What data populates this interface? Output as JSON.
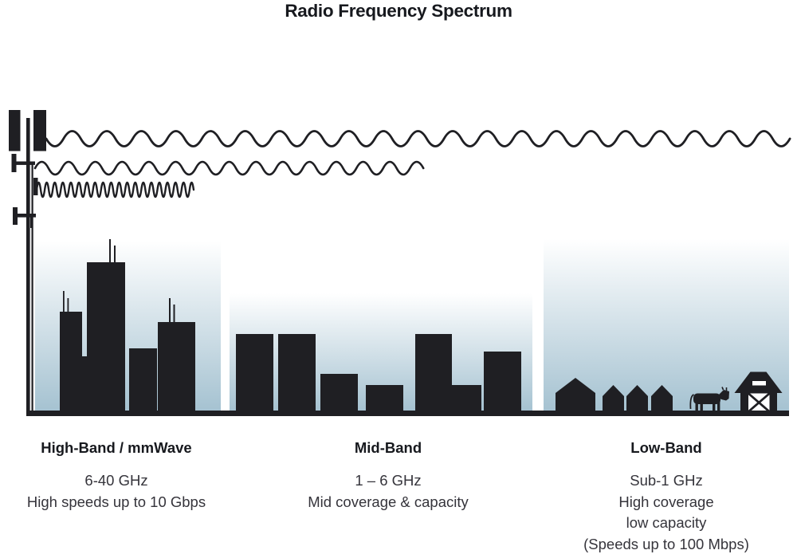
{
  "title": "Radio Frequency Spectrum",
  "bands": [
    {
      "name": "High-Band / mmWave",
      "lines": [
        "6-40 GHz",
        "High speeds up to 10 Gbps"
      ],
      "illustration": "city-skyline-icon",
      "wave": "short-wavelength-wave-icon"
    },
    {
      "name": "Mid-Band",
      "lines": [
        "1 – 6 GHz",
        "Mid coverage & capacity"
      ],
      "illustration": "midrise-buildings-icon",
      "wave": "medium-wavelength-wave-icon"
    },
    {
      "name": "Low-Band",
      "lines": [
        "Sub-1 GHz",
        "High coverage",
        "low capacity",
        "(Speeds up to 100 Mbps)"
      ],
      "illustration": "rural-houses-cow-barn-icon",
      "wave": "long-wavelength-wave-icon"
    }
  ],
  "icons": [
    "cell-tower-icon",
    "long-wavelength-wave-icon",
    "medium-wavelength-wave-icon",
    "short-wavelength-wave-icon",
    "city-skyline-icon",
    "midrise-buildings-icon",
    "house-icon",
    "cow-icon",
    "barn-icon"
  ],
  "colors": {
    "ink": "#1f1f23",
    "sky_top": "#ffffff",
    "sky_bottom": "#a5c2d1",
    "heading_text": "#17191e",
    "body_text": "#35343b"
  }
}
